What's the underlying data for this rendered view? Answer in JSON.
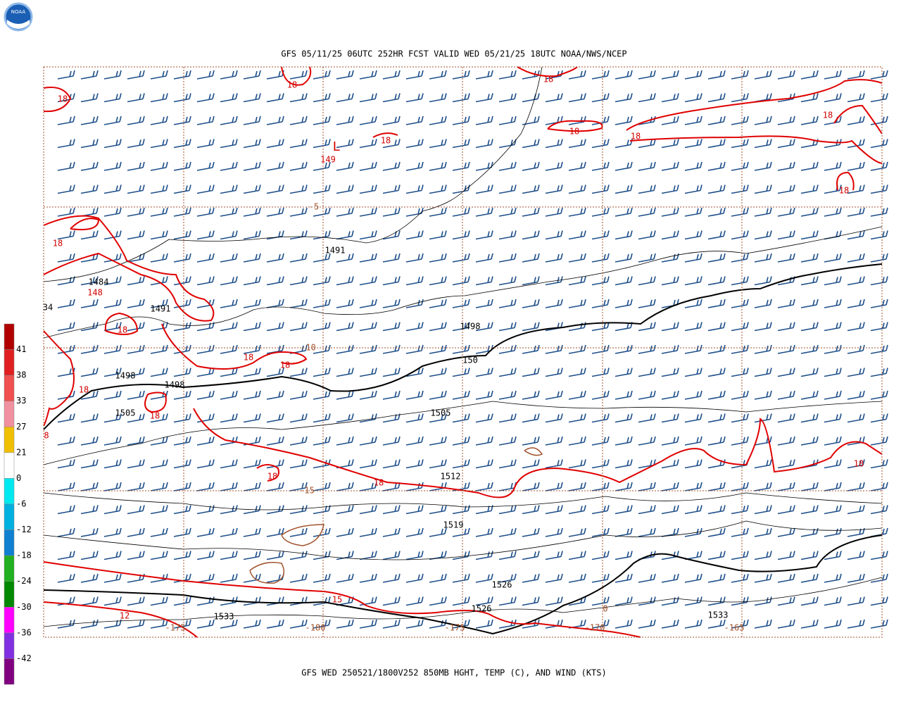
{
  "header": {
    "logo": "NOAA",
    "title": "GFS 05/11/25 06UTC 252HR FCST VALID WED 05/21/25 18UTC NOAA/NWS/NCEP"
  },
  "footer": {
    "caption": "GFS WED 250521/1800V252 850MB HGHT, TEMP (C), AND WIND (KTS)"
  },
  "colorbar": {
    "labels": [
      "41",
      "38",
      "33",
      "27",
      "21",
      "0",
      "-6",
      "-12",
      "-18",
      "-24",
      "-30",
      "-36",
      "-42"
    ]
  },
  "map": {
    "height_labels": [
      "1491",
      "1484",
      "34",
      "1491",
      "1498",
      "1498",
      "1498",
      "150",
      "1505",
      "1505",
      "1512",
      "1519",
      "1526",
      "1526",
      "1533",
      "1533"
    ],
    "temp_labels": [
      "18",
      "18",
      "18",
      "18",
      "18",
      "18",
      "18",
      "18",
      "18",
      "18",
      "18",
      "18",
      "18",
      "18",
      "8",
      "18",
      "18",
      "18",
      "12",
      "15"
    ],
    "low_center": {
      "symbol": "L",
      "value": "149"
    },
    "secondary_center": "148",
    "brown_labels": [
      "-5",
      "-10",
      "-15",
      "-175",
      "-180",
      "-175",
      "-170",
      "-165",
      "0"
    ]
  }
}
